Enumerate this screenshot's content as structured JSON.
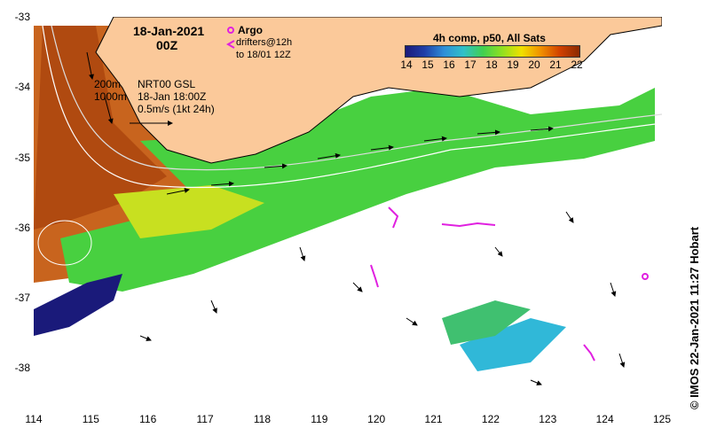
{
  "header": {
    "date": "18-Jan-2021",
    "time": "00Z"
  },
  "argo": {
    "label": "Argo",
    "drifter_line1": "drifters@12h",
    "drifter_line2": "to 18/01 12Z",
    "argo_color": "#e020e0",
    "drifter_color": "#e020e0"
  },
  "colorbar": {
    "title": "4h comp, p50, All Sats",
    "ticks": [
      "14",
      "15",
      "16",
      "17",
      "18",
      "19",
      "20",
      "21",
      "22"
    ],
    "colors": [
      "#1a1a7a",
      "#1f3fa8",
      "#2f8fd8",
      "#30c0c8",
      "#40d050",
      "#90e020",
      "#f0e000",
      "#f09000",
      "#d04000",
      "#8a2a00"
    ]
  },
  "contours_note": {
    "line1": "200m",
    "line2": "1000m"
  },
  "velocity_note": {
    "line1": "NRT00 GSL",
    "line2": "18-Jan 18:00Z",
    "line3": "0.5m/s (1kt 24h)"
  },
  "axes": {
    "x_ticks": [
      "114",
      "115",
      "116",
      "117",
      "118",
      "119",
      "120",
      "121",
      "122",
      "123",
      "124",
      "125"
    ],
    "y_ticks": [
      "-33",
      "-34",
      "-35",
      "-36",
      "-37",
      "-38"
    ],
    "x_range": [
      114,
      125
    ],
    "y_range": [
      -38.55,
      -33
    ]
  },
  "credit": "© IMOS 22-Jan-2021 11:27 Hobart",
  "colors": {
    "land": "#fbc99a",
    "warm": "#c8641e",
    "mid": "#e8c020",
    "cool": "#40d050"
  }
}
